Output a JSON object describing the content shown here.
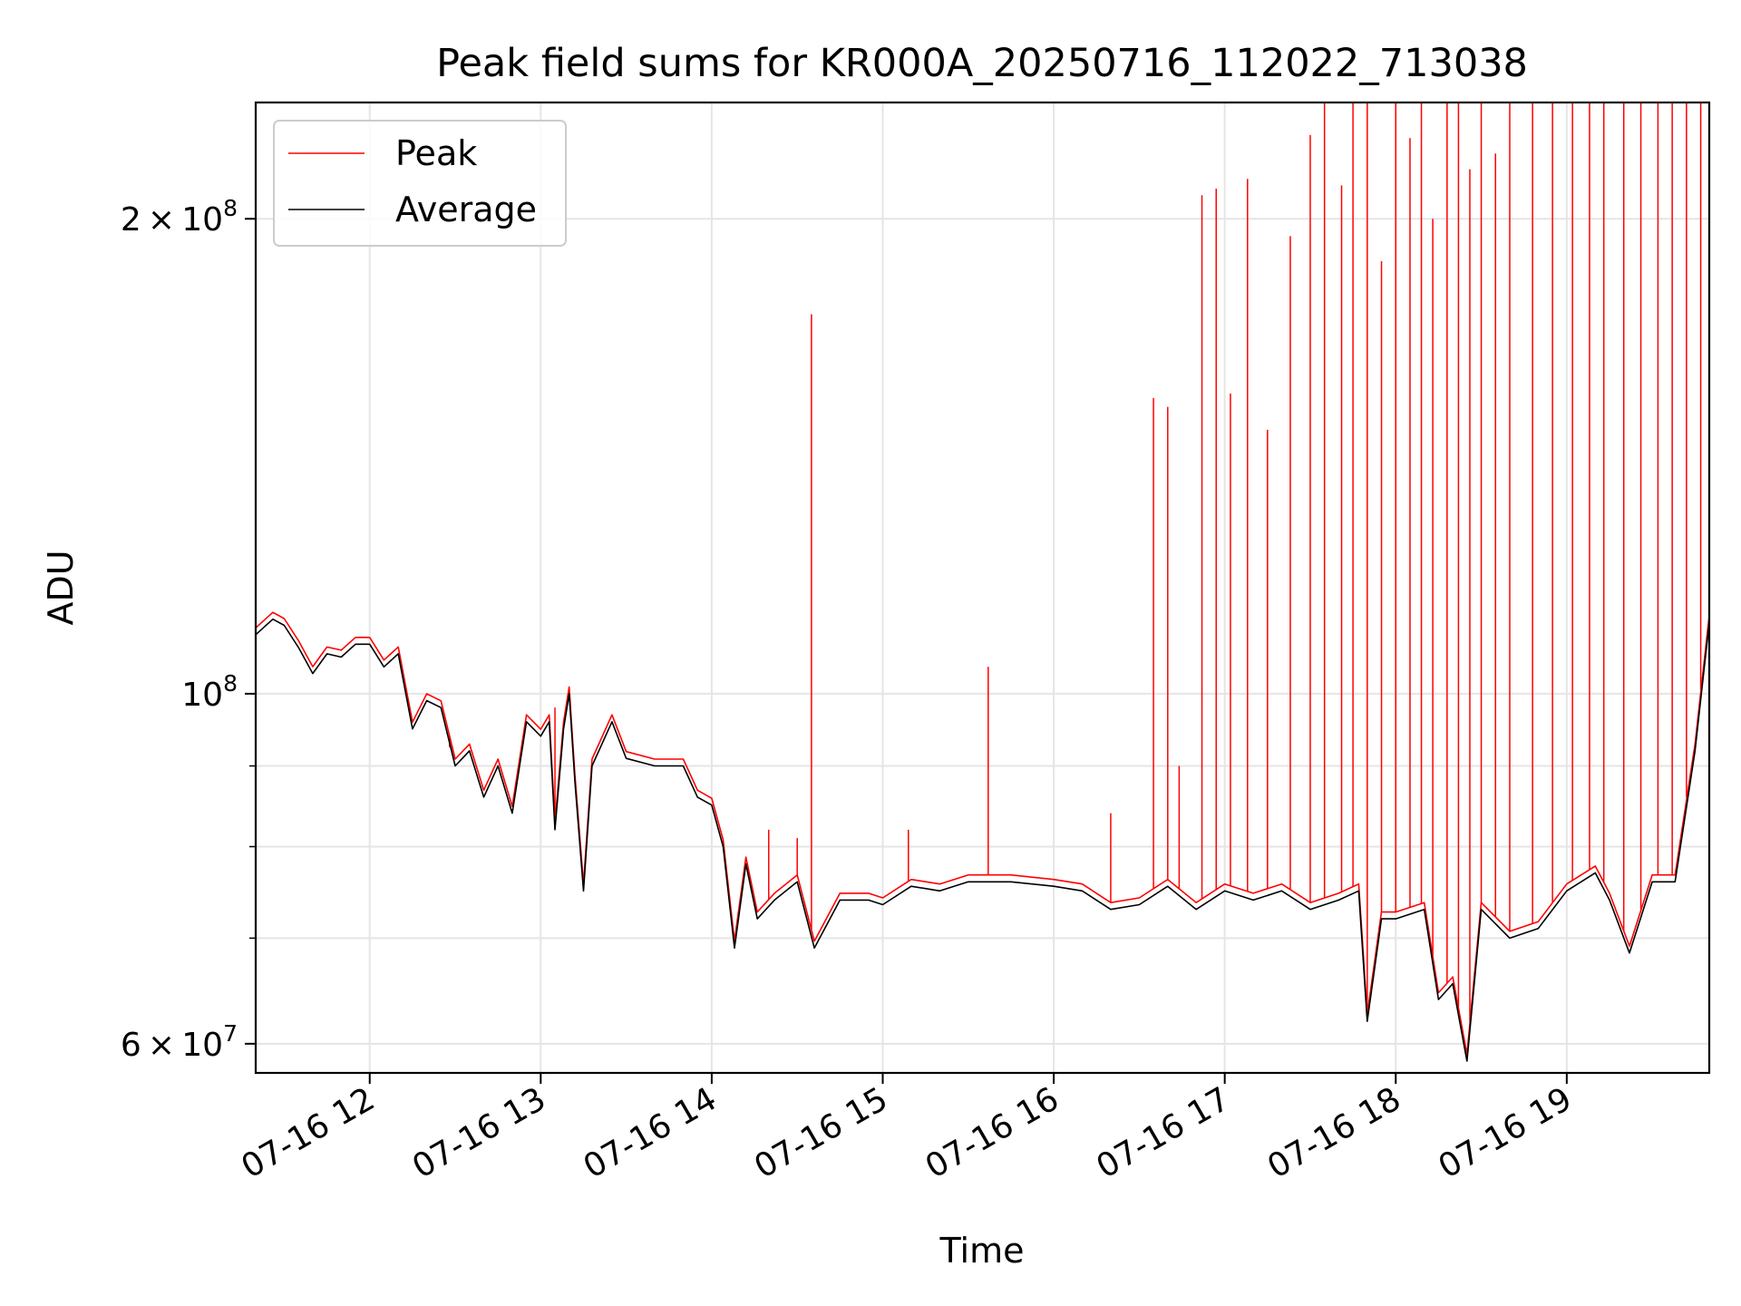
{
  "chart_data": {
    "type": "line",
    "title": "Peak field sums for KR000A_20250716_112022_713038",
    "xlabel": "Time",
    "ylabel": "ADU",
    "y_scale": "log",
    "grid": true,
    "legend_position": "upper-left",
    "xlim": [
      "2025-07-16 11:20",
      "2025-07-16 19:50"
    ],
    "ylim": [
      57500000,
      237000000
    ],
    "x_ticks": [
      {
        "label": "07-16 12",
        "value": "2025-07-16 12:00"
      },
      {
        "label": "07-16 13",
        "value": "2025-07-16 13:00"
      },
      {
        "label": "07-16 14",
        "value": "2025-07-16 14:00"
      },
      {
        "label": "07-16 15",
        "value": "2025-07-16 15:00"
      },
      {
        "label": "07-16 16",
        "value": "2025-07-16 16:00"
      },
      {
        "label": "07-16 17",
        "value": "2025-07-16 17:00"
      },
      {
        "label": "07-16 18",
        "value": "2025-07-16 18:00"
      },
      {
        "label": "07-16 19",
        "value": "2025-07-16 19:00"
      }
    ],
    "y_ticks_major": [
      {
        "label_mant": "6",
        "label_exp": "7",
        "value": 60000000
      },
      {
        "label_mant": "",
        "label_exp": "8",
        "value": 100000000
      },
      {
        "label_mant": "2",
        "label_exp": "8",
        "value": 200000000
      }
    ],
    "y_ticks_minor": [
      70000000,
      80000000,
      90000000
    ],
    "series": [
      {
        "name": "Average",
        "color": "#000000",
        "points": [
          [
            "2025-07-16 11:20",
            109000000
          ],
          [
            "2025-07-16 11:26",
            111500000
          ],
          [
            "2025-07-16 11:30",
            110500000
          ],
          [
            "2025-07-16 11:35",
            107000000
          ],
          [
            "2025-07-16 11:40",
            103000000
          ],
          [
            "2025-07-16 11:45",
            106000000
          ],
          [
            "2025-07-16 11:50",
            105500000
          ],
          [
            "2025-07-16 11:55",
            107500000
          ],
          [
            "2025-07-16 12:00",
            107500000
          ],
          [
            "2025-07-16 12:05",
            104000000
          ],
          [
            "2025-07-16 12:10",
            106000000
          ],
          [
            "2025-07-16 12:15",
            95000000
          ],
          [
            "2025-07-16 12:20",
            99000000
          ],
          [
            "2025-07-16 12:25",
            98000000
          ],
          [
            "2025-07-16 12:30",
            90000000
          ],
          [
            "2025-07-16 12:35",
            92000000
          ],
          [
            "2025-07-16 12:40",
            86000000
          ],
          [
            "2025-07-16 12:45",
            90000000
          ],
          [
            "2025-07-16 12:50",
            84000000
          ],
          [
            "2025-07-16 12:55",
            96000000
          ],
          [
            "2025-07-16 13:00",
            94000000
          ],
          [
            "2025-07-16 13:03",
            96000000
          ],
          [
            "2025-07-16 13:05",
            82000000
          ],
          [
            "2025-07-16 13:08",
            95000000
          ],
          [
            "2025-07-16 13:10",
            100000000
          ],
          [
            "2025-07-16 13:12",
            88000000
          ],
          [
            "2025-07-16 13:15",
            75000000
          ],
          [
            "2025-07-16 13:18",
            90000000
          ],
          [
            "2025-07-16 13:25",
            96000000
          ],
          [
            "2025-07-16 13:30",
            91000000
          ],
          [
            "2025-07-16 13:40",
            90000000
          ],
          [
            "2025-07-16 13:50",
            90000000
          ],
          [
            "2025-07-16 13:55",
            86000000
          ],
          [
            "2025-07-16 14:00",
            85000000
          ],
          [
            "2025-07-16 14:04",
            80000000
          ],
          [
            "2025-07-16 14:08",
            69000000
          ],
          [
            "2025-07-16 14:12",
            78000000
          ],
          [
            "2025-07-16 14:16",
            72000000
          ],
          [
            "2025-07-16 14:22",
            74000000
          ],
          [
            "2025-07-16 14:30",
            76000000
          ],
          [
            "2025-07-16 14:36",
            69000000
          ],
          [
            "2025-07-16 14:45",
            74000000
          ],
          [
            "2025-07-16 14:55",
            74000000
          ],
          [
            "2025-07-16 15:00",
            73500000
          ],
          [
            "2025-07-16 15:10",
            75500000
          ],
          [
            "2025-07-16 15:20",
            75000000
          ],
          [
            "2025-07-16 15:30",
            76000000
          ],
          [
            "2025-07-16 15:45",
            76000000
          ],
          [
            "2025-07-16 16:00",
            75500000
          ],
          [
            "2025-07-16 16:10",
            75000000
          ],
          [
            "2025-07-16 16:20",
            73000000
          ],
          [
            "2025-07-16 16:30",
            73500000
          ],
          [
            "2025-07-16 16:40",
            75500000
          ],
          [
            "2025-07-16 16:50",
            73000000
          ],
          [
            "2025-07-16 17:00",
            75000000
          ],
          [
            "2025-07-16 17:10",
            74000000
          ],
          [
            "2025-07-16 17:20",
            75000000
          ],
          [
            "2025-07-16 17:30",
            73000000
          ],
          [
            "2025-07-16 17:40",
            74000000
          ],
          [
            "2025-07-16 17:47",
            75000000
          ],
          [
            "2025-07-16 17:50",
            62000000
          ],
          [
            "2025-07-16 17:55",
            72000000
          ],
          [
            "2025-07-16 18:00",
            72000000
          ],
          [
            "2025-07-16 18:10",
            73000000
          ],
          [
            "2025-07-16 18:15",
            64000000
          ],
          [
            "2025-07-16 18:20",
            65500000
          ],
          [
            "2025-07-16 18:25",
            58500000
          ],
          [
            "2025-07-16 18:30",
            73000000
          ],
          [
            "2025-07-16 18:40",
            70000000
          ],
          [
            "2025-07-16 18:50",
            71000000
          ],
          [
            "2025-07-16 19:00",
            75000000
          ],
          [
            "2025-07-16 19:10",
            77000000
          ],
          [
            "2025-07-16 19:15",
            74000000
          ],
          [
            "2025-07-16 19:22",
            68500000
          ],
          [
            "2025-07-16 19:30",
            76000000
          ],
          [
            "2025-07-16 19:38",
            76000000
          ],
          [
            "2025-07-16 19:45",
            92000000
          ],
          [
            "2025-07-16 19:50",
            111000000
          ]
        ]
      },
      {
        "name": "Peak",
        "color": "#ff0000",
        "offset_ratio": 1.01,
        "spikes": [
          [
            "2025-07-16 12:28",
            92500000
          ],
          [
            "2025-07-16 13:05",
            98000000
          ],
          [
            "2025-07-16 14:20",
            82000000
          ],
          [
            "2025-07-16 14:30",
            81000000
          ],
          [
            "2025-07-16 14:35",
            174000000
          ],
          [
            "2025-07-16 15:09",
            82000000
          ],
          [
            "2025-07-16 15:37",
            104000000
          ],
          [
            "2025-07-16 16:20",
            84000000
          ],
          [
            "2025-07-16 16:35",
            154000000
          ],
          [
            "2025-07-16 16:40",
            152000000
          ],
          [
            "2025-07-16 16:44",
            90000000
          ],
          [
            "2025-07-16 16:52",
            207000000
          ],
          [
            "2025-07-16 16:57",
            209000000
          ],
          [
            "2025-07-16 17:02",
            155000000
          ],
          [
            "2025-07-16 17:08",
            212000000
          ],
          [
            "2025-07-16 17:15",
            147000000
          ],
          [
            "2025-07-16 17:23",
            195000000
          ],
          [
            "2025-07-16 17:30",
            226000000
          ],
          [
            "2025-07-16 17:35",
            237000000
          ],
          [
            "2025-07-16 17:41",
            210000000
          ],
          [
            "2025-07-16 17:45",
            237000000
          ],
          [
            "2025-07-16 17:50",
            237000000
          ],
          [
            "2025-07-16 17:55",
            188000000
          ],
          [
            "2025-07-16 18:00",
            237000000
          ],
          [
            "2025-07-16 18:05",
            225000000
          ],
          [
            "2025-07-16 18:09",
            237000000
          ],
          [
            "2025-07-16 18:13",
            200000000
          ],
          [
            "2025-07-16 18:18",
            237000000
          ],
          [
            "2025-07-16 18:22",
            237000000
          ],
          [
            "2025-07-16 18:26",
            215000000
          ],
          [
            "2025-07-16 18:30",
            237000000
          ],
          [
            "2025-07-16 18:35",
            220000000
          ],
          [
            "2025-07-16 18:40",
            237000000
          ],
          [
            "2025-07-16 18:48",
            237000000
          ],
          [
            "2025-07-16 18:55",
            237000000
          ],
          [
            "2025-07-16 19:02",
            237000000
          ],
          [
            "2025-07-16 19:08",
            237000000
          ],
          [
            "2025-07-16 19:13",
            237000000
          ],
          [
            "2025-07-16 19:20",
            237000000
          ],
          [
            "2025-07-16 19:26",
            237000000
          ],
          [
            "2025-07-16 19:32",
            237000000
          ],
          [
            "2025-07-16 19:37",
            237000000
          ],
          [
            "2025-07-16 19:42",
            237000000
          ],
          [
            "2025-07-16 19:47",
            237000000
          ],
          [
            "2025-07-16 19:50",
            155000000
          ]
        ]
      }
    ]
  }
}
